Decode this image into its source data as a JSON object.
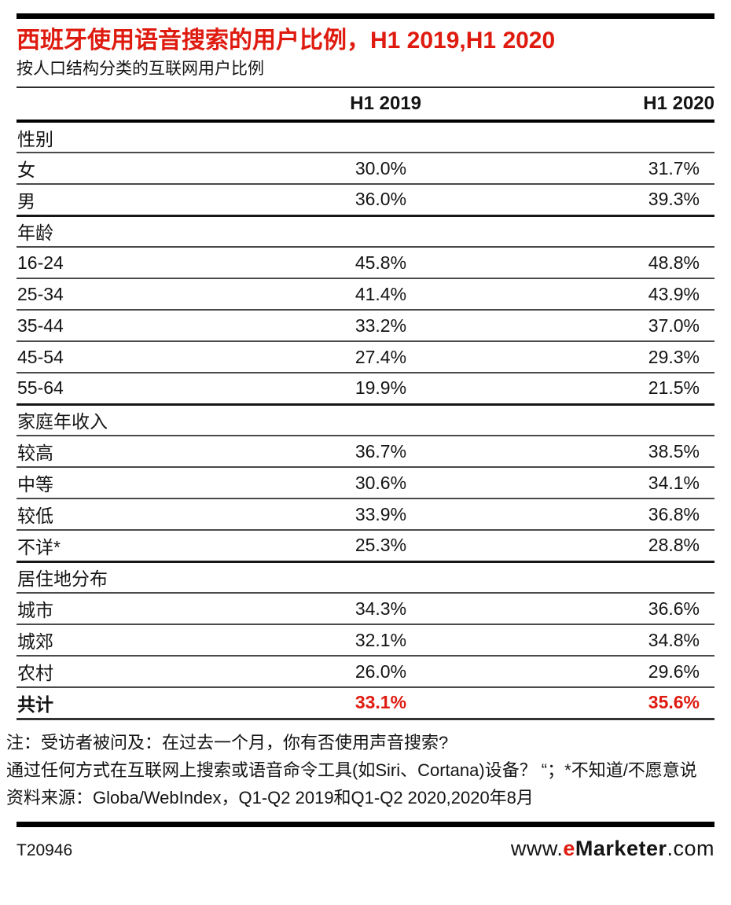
{
  "chart_data": {
    "type": "table",
    "title": "西班牙使用语音搜索的用户比例，H1 2019,H1 2020",
    "subtitle": "按人口结构分类的互联网用户比例",
    "columns": [
      "H1 2019",
      "H1 2020"
    ],
    "sections": [
      {
        "label": "性别",
        "rows": [
          {
            "label": "女",
            "values": [
              "30.0%",
              "31.7%"
            ]
          },
          {
            "label": "男",
            "values": [
              "36.0%",
              "39.3%"
            ]
          }
        ]
      },
      {
        "label": "年龄",
        "rows": [
          {
            "label": "16-24",
            "values": [
              "45.8%",
              "48.8%"
            ]
          },
          {
            "label": "25-34",
            "values": [
              "41.4%",
              "43.9%"
            ]
          },
          {
            "label": "35-44",
            "values": [
              "33.2%",
              "37.0%"
            ]
          },
          {
            "label": "45-54",
            "values": [
              "27.4%",
              "29.3%"
            ]
          },
          {
            "label": "55-64",
            "values": [
              "19.9%",
              "21.5%"
            ]
          }
        ]
      },
      {
        "label": "家庭年收入",
        "rows": [
          {
            "label": "较高",
            "values": [
              "36.7%",
              "38.5%"
            ]
          },
          {
            "label": "中等",
            "values": [
              "30.6%",
              "34.1%"
            ]
          },
          {
            "label": "较低",
            "values": [
              "33.9%",
              "36.8%"
            ]
          },
          {
            "label": "不详*",
            "values": [
              "25.3%",
              "28.8%"
            ]
          }
        ]
      },
      {
        "label": "居住地分布",
        "rows": [
          {
            "label": "城市",
            "values": [
              "34.3%",
              "36.6%"
            ]
          },
          {
            "label": "城郊",
            "values": [
              "32.1%",
              "34.8%"
            ]
          },
          {
            "label": "农村",
            "values": [
              "26.0%",
              "29.6%"
            ]
          }
        ]
      }
    ],
    "total_row": {
      "label": "共计",
      "values": [
        "33.1%",
        "35.6%"
      ]
    }
  },
  "notes": [
    "注：受访者被问及：在过去一个月，你有否使用声音搜索?",
    "通过任何方式在互联网上搜索或语音命令工具(如Siri、Cortana)设备？ “；*不知道/不愿意说",
    "资料来源：Globa/WebIndex，Q1-Q2 2019和Q1-Q2 2020,2020年8月"
  ],
  "footer": {
    "chart_id": "T20946",
    "site_prefix": "www.",
    "site_e": "e",
    "site_name": "Marketer",
    "site_suffix": ".com"
  },
  "colors": {
    "accent_red": "#df1b10",
    "text": "#141414",
    "bar_black": "#000000"
  }
}
